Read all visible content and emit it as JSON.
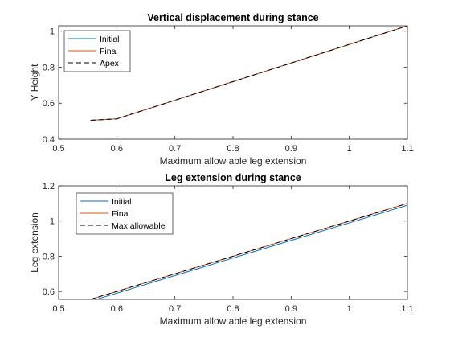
{
  "chart_data": [
    {
      "type": "line",
      "title": "Vertical displacement during stance",
      "xlabel": "Maximum allow able leg extension",
      "ylabel": "Y Height",
      "xlim": [
        0.5,
        1.1
      ],
      "ylim": [
        0.4,
        1.03
      ],
      "xticks": [
        "0.5",
        "0.6",
        "0.7",
        "0.8",
        "0.9",
        "1",
        "1.1"
      ],
      "yticks": [
        "0.4",
        "0.6",
        "0.8",
        "1"
      ],
      "legend_position": "top-left",
      "series": [
        {
          "name": "Initial",
          "color": "#0072BD",
          "dash": "solid",
          "x": [
            0.555,
            0.6,
            1.1
          ],
          "y": [
            0.505,
            0.513,
            1.03
          ]
        },
        {
          "name": "Final",
          "color": "#D95319",
          "dash": "solid",
          "x": [
            0.555,
            0.6,
            1.1
          ],
          "y": [
            0.505,
            0.513,
            1.03
          ]
        },
        {
          "name": "Apex",
          "color": "#000000",
          "dash": "dashed",
          "x": [
            0.555,
            0.6,
            1.1
          ],
          "y": [
            0.505,
            0.513,
            1.03
          ]
        }
      ]
    },
    {
      "type": "line",
      "title": "Leg extension during stance",
      "xlabel": "Maximum allow able leg extension",
      "ylabel": "Leg extension",
      "xlim": [
        0.5,
        1.1
      ],
      "ylim": [
        0.555,
        1.2
      ],
      "xticks": [
        "0.5",
        "0.6",
        "0.7",
        "0.8",
        "0.9",
        "1",
        "1.1"
      ],
      "yticks": [
        "0.6",
        "0.8",
        "1",
        "1.2"
      ],
      "legend_position": "top-left",
      "series": [
        {
          "name": "Initial",
          "color": "#0072BD",
          "dash": "solid",
          "x": [
            0.555,
            1.1
          ],
          "y": [
            0.545,
            1.09
          ]
        },
        {
          "name": "Final",
          "color": "#D95319",
          "dash": "solid",
          "x": [
            0.555,
            1.1
          ],
          "y": [
            0.555,
            1.1
          ]
        },
        {
          "name": "Max allowable",
          "color": "#000000",
          "dash": "dashed",
          "x": [
            0.555,
            1.1
          ],
          "y": [
            0.555,
            1.1
          ]
        }
      ]
    }
  ]
}
